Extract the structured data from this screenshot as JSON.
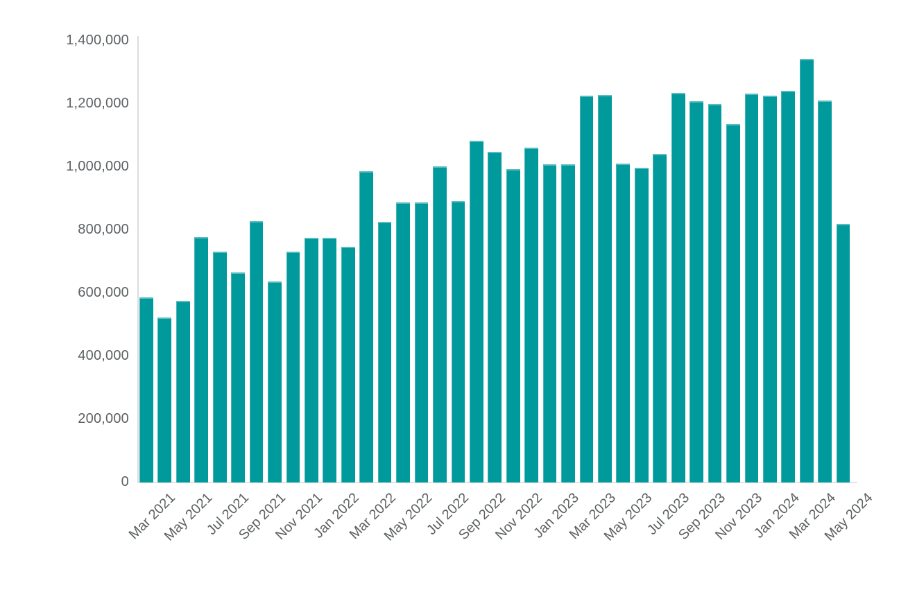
{
  "chart_data": {
    "type": "bar",
    "title": "",
    "xlabel": "",
    "ylabel": "",
    "grid": "off",
    "legend": "none",
    "bar_color": "#00999C",
    "axis_color": "#DCDCDC",
    "tick_label_color": "#5D6163",
    "ylim": [
      0,
      1400000
    ],
    "y_ticks": [
      0,
      200000,
      400000,
      600000,
      800000,
      1000000,
      1200000,
      1400000
    ],
    "y_tick_labels": [
      "0",
      "200,000",
      "400,000",
      "600,000",
      "800,000",
      "1,000,000",
      "1,200,000",
      "1,400,000"
    ],
    "x_tick_labels": [
      "Mar 2021",
      "May 2021",
      "Jul 2021",
      "Sep 2021",
      "Nov 2021",
      "Jan 2022",
      "Mar 2022",
      "May 2022",
      "Jul 2022",
      "Sep 2022",
      "Nov 2022",
      "Jan 2023",
      "Mar 2023",
      "May 2023",
      "Jul 2023",
      "Sep 2023",
      "Nov 2023",
      "Jan 2024",
      "Mar 2024",
      "May 2024"
    ],
    "x_tick_every": 2,
    "categories": [
      "Mar 2021",
      "Apr 2021",
      "May 2021",
      "Jun 2021",
      "Jul 2021",
      "Aug 2021",
      "Sep 2021",
      "Oct 2021",
      "Nov 2021",
      "Dec 2021",
      "Jan 2022",
      "Feb 2022",
      "Mar 2022",
      "Apr 2022",
      "May 2022",
      "Jun 2022",
      "Jul 2022",
      "Aug 2022",
      "Sep 2022",
      "Oct 2022",
      "Nov 2022",
      "Dec 2022",
      "Jan 2023",
      "Feb 2023",
      "Mar 2023",
      "Apr 2023",
      "May 2023",
      "Jun 2023",
      "Jul 2023",
      "Aug 2023",
      "Sep 2023",
      "Oct 2023",
      "Nov 2023",
      "Dec 2023",
      "Jan 2024",
      "Feb 2024",
      "Mar 2024",
      "Apr 2024",
      "May 2024"
    ],
    "values": [
      586000,
      523000,
      575000,
      778000,
      732000,
      667000,
      829000,
      638000,
      733000,
      777000,
      775000,
      748000,
      987000,
      826000,
      889000,
      887000,
      1003000,
      893000,
      1083000,
      1048000,
      993000,
      1062000,
      1008000,
      1009000,
      1226000,
      1228000,
      1012000,
      998000,
      1042000,
      1235000,
      1209000,
      1201000,
      1136000,
      1234000,
      1226000,
      1242000,
      1343000,
      1212000,
      819000
    ]
  }
}
